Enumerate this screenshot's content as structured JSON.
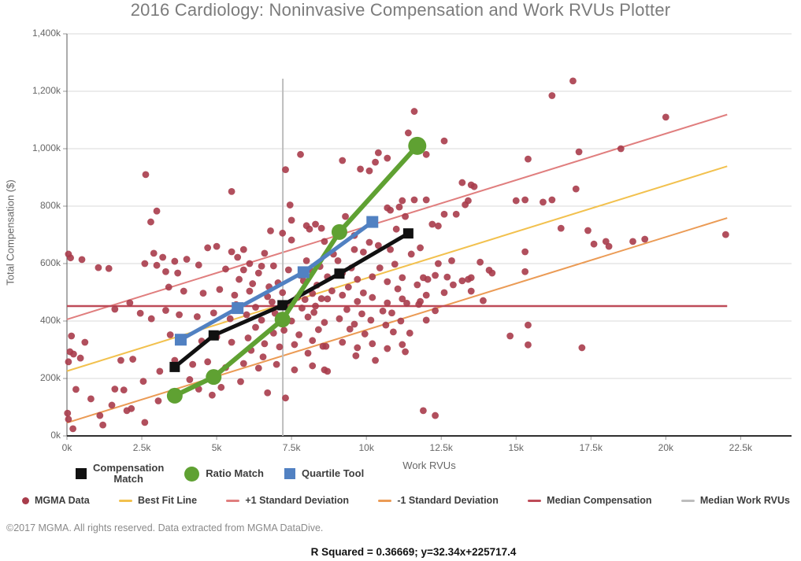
{
  "title": "2016 Cardiology: Noninvasive Compensation and Work RVUs Plotter",
  "footer": "©2017 MGMA. All rights reserved. Data extracted from MGMA DataDive.",
  "stats_line": "R Squared = 0.36669; y=32.34x+225717.4",
  "colors": {
    "scatter": "#A83C4B",
    "best_fit": "#F2C14E",
    "plus1_sd": "#E07E7E",
    "minus1_sd": "#EB9B55",
    "median_comp": "#BE4B58",
    "median_rvu": "#BDBDBD",
    "comp_match": "#111111",
    "ratio_match": "#5FA132",
    "quartile": "#5181C2",
    "grid": "#d8d8d8",
    "axis": "#3a3a3a"
  },
  "legend_row1": [
    {
      "label": "Compensation Match",
      "marker": "square",
      "color": "#111111"
    },
    {
      "label": "Ratio Match",
      "marker": "circle",
      "color": "#5FA132"
    },
    {
      "label": "Quartile Tool",
      "marker": "square",
      "color": "#5181C2"
    }
  ],
  "legend_row2": [
    {
      "label": "MGMA Data",
      "marker": "dot",
      "color": "#A83C4B"
    },
    {
      "label": "Best Fit Line",
      "marker": "dash",
      "color": "#F2C14E"
    },
    {
      "label": "+1 Standard Deviation",
      "marker": "dash",
      "color": "#E07E7E"
    },
    {
      "label": "-1 Standard Deviation",
      "marker": "dash",
      "color": "#EB9B55"
    },
    {
      "label": "Median Compensation",
      "marker": "dash",
      "color": "#BE4B58"
    },
    {
      "label": "Median Work RVUs",
      "marker": "dash",
      "color": "#BDBDBD"
    }
  ],
  "chart_data": {
    "type": "scatter",
    "title": "2016 Cardiology: Noninvasive Compensation and Work RVUs Plotter",
    "xlabel": "Work RVUs",
    "ylabel": "Total Compensation ($)",
    "x_units": "thousands of work RVUs",
    "y_units": "thousands of dollars",
    "xlim": [
      0,
      24.2
    ],
    "ylim": [
      0,
      1400
    ],
    "x_ticks": [
      {
        "v": 0,
        "t": "0k"
      },
      {
        "v": 2.5,
        "t": "2.5k"
      },
      {
        "v": 5,
        "t": "5k"
      },
      {
        "v": 7.5,
        "t": "7.5k"
      },
      {
        "v": 10,
        "t": "10k"
      },
      {
        "v": 12.5,
        "t": "12.5k"
      },
      {
        "v": 15,
        "t": "15k"
      },
      {
        "v": 17.5,
        "t": "17.5k"
      },
      {
        "v": 20,
        "t": "20k"
      },
      {
        "v": 22.5,
        "t": "22.5k"
      }
    ],
    "y_ticks": [
      {
        "v": 0,
        "t": "0k"
      },
      {
        "v": 200,
        "t": "200k"
      },
      {
        "v": 400,
        "t": "400k"
      },
      {
        "v": 600,
        "t": "600k"
      },
      {
        "v": 800,
        "t": "800k"
      },
      {
        "v": 1000,
        "t": "1,000k"
      },
      {
        "v": 1200,
        "t": "1,200k"
      },
      {
        "v": 1400,
        "t": "1,400k"
      }
    ],
    "grid": "horizontal-only",
    "r_squared": 0.36669,
    "fit_equation": "y=32.34x+225717.4",
    "ref_lines": [
      {
        "name": "Best Fit Line",
        "slope": 32.34,
        "intercept": 225.7,
        "x0": 0,
        "x1": 22.05,
        "color": "#F2C14E",
        "w": 2
      },
      {
        "name": "+1 Standard Deviation",
        "slope": 32.34,
        "intercept": 405.7,
        "x0": 0,
        "x1": 22.05,
        "color": "#E07E7E",
        "w": 2
      },
      {
        "name": "-1 Standard Deviation",
        "slope": 32.34,
        "intercept": 45.7,
        "x0": 0,
        "x1": 22.05,
        "color": "#EB9B55",
        "w": 2
      },
      {
        "name": "Median Compensation",
        "slope": 0,
        "intercept": 452,
        "x0": 0,
        "x1": 22.05,
        "color": "#BE4B58",
        "w": 2.5
      },
      {
        "name": "Median Work RVUs",
        "vertical": true,
        "x": 7.21,
        "y0": 0,
        "y1": 1244,
        "color": "#BDBDBD",
        "w": 2
      }
    ],
    "match_series": [
      {
        "name": "Compensation Match",
        "color": "#111111",
        "marker": "square",
        "marker_size": 13,
        "line_w": 5,
        "points": [
          [
            3.6,
            240
          ],
          [
            4.9,
            350
          ],
          [
            7.2,
            455
          ],
          [
            9.1,
            565
          ],
          [
            11.4,
            705
          ]
        ]
      },
      {
        "name": "Ratio Match",
        "color": "#5FA132",
        "marker": "circle",
        "marker_size": 20,
        "line_w": 6,
        "points": [
          [
            3.6,
            140
          ],
          [
            4.9,
            205
          ],
          [
            7.2,
            405
          ],
          [
            9.1,
            710
          ],
          [
            11.7,
            1010
          ]
        ]
      },
      {
        "name": "Quartile Tool",
        "color": "#5181C2",
        "marker": "square",
        "marker_size": 15,
        "line_w": 5,
        "points": [
          [
            3.8,
            335
          ],
          [
            5.7,
            445
          ],
          [
            7.9,
            570
          ],
          [
            10.2,
            745
          ]
        ]
      }
    ],
    "scatter_name": "MGMA Data",
    "points": [
      [
        0.05,
        633
      ],
      [
        0.12,
        620
      ],
      [
        0.5,
        614
      ],
      [
        1.05,
        586
      ],
      [
        1.4,
        583
      ],
      [
        2.6,
        600
      ],
      [
        0.15,
        348
      ],
      [
        0.6,
        326
      ],
      [
        0.45,
        271
      ],
      [
        0.1,
        293
      ],
      [
        0.22,
        285
      ],
      [
        0.05,
        258
      ],
      [
        0.3,
        162
      ],
      [
        0.8,
        129
      ],
      [
        1.6,
        163
      ],
      [
        1.9,
        160
      ],
      [
        2.0,
        88
      ],
      [
        2.15,
        95
      ],
      [
        2.6,
        47
      ],
      [
        2.55,
        190
      ],
      [
        0.02,
        79
      ],
      [
        0.05,
        58
      ],
      [
        0.2,
        25
      ],
      [
        1.1,
        71
      ],
      [
        1.2,
        38
      ],
      [
        1.5,
        107
      ],
      [
        1.8,
        263
      ],
      [
        2.2,
        267
      ],
      [
        2.1,
        463
      ],
      [
        1.6,
        441
      ],
      [
        2.45,
        427
      ],
      [
        2.82,
        408
      ],
      [
        2.9,
        636
      ],
      [
        3.0,
        594
      ],
      [
        3.3,
        572
      ],
      [
        3.7,
        567
      ],
      [
        2.63,
        910
      ],
      [
        2.8,
        745
      ],
      [
        3.0,
        783
      ],
      [
        3.2,
        622
      ],
      [
        3.6,
        608
      ],
      [
        4.0,
        615
      ],
      [
        4.4,
        595
      ],
      [
        3.4,
        518
      ],
      [
        3.9,
        504
      ],
      [
        4.55,
        497
      ],
      [
        3.45,
        352
      ],
      [
        3.85,
        341
      ],
      [
        4.5,
        330
      ],
      [
        3.3,
        437
      ],
      [
        3.75,
        422
      ],
      [
        4.35,
        415
      ],
      [
        4.9,
        428
      ],
      [
        3.6,
        263
      ],
      [
        4.2,
        249
      ],
      [
        4.7,
        258
      ],
      [
        4.1,
        196
      ],
      [
        3.1,
        225
      ],
      [
        4.4,
        163
      ],
      [
        4.85,
        142
      ],
      [
        3.05,
        122
      ],
      [
        5.0,
        660
      ],
      [
        4.7,
        655
      ],
      [
        5.3,
        581
      ],
      [
        5.1,
        510
      ],
      [
        5.0,
        345
      ],
      [
        5.3,
        238
      ],
      [
        5.15,
        169
      ],
      [
        5.5,
        851
      ],
      [
        5.5,
        641
      ],
      [
        5.7,
        622
      ],
      [
        6.1,
        600
      ],
      [
        6.5,
        591
      ],
      [
        5.9,
        649
      ],
      [
        6.6,
        636
      ],
      [
        5.9,
        578
      ],
      [
        6.4,
        567
      ],
      [
        6.9,
        592
      ],
      [
        5.6,
        490
      ],
      [
        6.1,
        504
      ],
      [
        6.7,
        485
      ],
      [
        5.45,
        408
      ],
      [
        6.0,
        422
      ],
      [
        6.5,
        403
      ],
      [
        5.5,
        326
      ],
      [
        6.05,
        341
      ],
      [
        6.6,
        321
      ],
      [
        5.9,
        252
      ],
      [
        6.4,
        236
      ],
      [
        7.0,
        249
      ],
      [
        6.3,
        448
      ],
      [
        6.85,
        466
      ],
      [
        6.75,
        519
      ],
      [
        5.75,
        545
      ],
      [
        6.2,
        530
      ],
      [
        7.05,
        533
      ],
      [
        6.95,
        427
      ],
      [
        5.65,
        457
      ],
      [
        6.3,
        378
      ],
      [
        6.9,
        358
      ],
      [
        6.15,
        298
      ],
      [
        6.55,
        275
      ],
      [
        5.8,
        189
      ],
      [
        6.7,
        150
      ],
      [
        7.3,
        132
      ],
      [
        7.1,
        310
      ],
      [
        7.3,
        927
      ],
      [
        7.8,
        980
      ],
      [
        7.45,
        804
      ],
      [
        7.5,
        751
      ],
      [
        6.8,
        714
      ],
      [
        7.2,
        706
      ],
      [
        8.1,
        720
      ],
      [
        7.5,
        682
      ],
      [
        8.0,
        732
      ],
      [
        8.3,
        737
      ],
      [
        7.4,
        578
      ],
      [
        7.8,
        559
      ],
      [
        8.2,
        573
      ],
      [
        7.2,
        499
      ],
      [
        7.7,
        482
      ],
      [
        8.2,
        496
      ],
      [
        7.5,
        400
      ],
      [
        8.05,
        414
      ],
      [
        7.6,
        318
      ],
      [
        8.2,
        332
      ],
      [
        7.6,
        230
      ],
      [
        8.2,
        244
      ],
      [
        8.5,
        723
      ],
      [
        8.6,
        677
      ],
      [
        8.45,
        590
      ],
      [
        8.0,
        610
      ],
      [
        7.9,
        540
      ],
      [
        8.35,
        525
      ],
      [
        7.35,
        460
      ],
      [
        7.85,
        445
      ],
      [
        8.3,
        452
      ],
      [
        8.5,
        478
      ],
      [
        7.25,
        368
      ],
      [
        7.75,
        352
      ],
      [
        8.4,
        370
      ],
      [
        8.05,
        288
      ],
      [
        8.6,
        230
      ],
      [
        8.55,
        312
      ],
      [
        7.95,
        475
      ],
      [
        8.25,
        430
      ],
      [
        9.3,
        764
      ],
      [
        9.6,
        698
      ],
      [
        8.9,
        633
      ],
      [
        9.6,
        649
      ],
      [
        8.7,
        554
      ],
      [
        9.2,
        567
      ],
      [
        9.7,
        545
      ],
      [
        8.7,
        477
      ],
      [
        9.2,
        490
      ],
      [
        9.7,
        468
      ],
      [
        8.6,
        395
      ],
      [
        9.1,
        408
      ],
      [
        9.6,
        389
      ],
      [
        8.65,
        312
      ],
      [
        9.2,
        326
      ],
      [
        9.7,
        307
      ],
      [
        8.7,
        225
      ],
      [
        9.65,
        279
      ],
      [
        9.2,
        959
      ],
      [
        9.8,
        929
      ],
      [
        8.85,
        505
      ],
      [
        9.4,
        518
      ],
      [
        9.9,
        498
      ],
      [
        9.35,
        440
      ],
      [
        9.85,
        425
      ],
      [
        9.45,
        372
      ],
      [
        9.95,
        355
      ],
      [
        9.5,
        585
      ],
      [
        9.05,
        610
      ],
      [
        9.9,
        640
      ],
      [
        10.4,
        986
      ],
      [
        10.7,
        967
      ],
      [
        10.3,
        953
      ],
      [
        10.1,
        923
      ],
      [
        10.8,
        786
      ],
      [
        11.3,
        764
      ],
      [
        10.1,
        674
      ],
      [
        10.4,
        663
      ],
      [
        10.8,
        649
      ],
      [
        10.2,
        554
      ],
      [
        10.7,
        537
      ],
      [
        11.2,
        551
      ],
      [
        10.2,
        482
      ],
      [
        10.7,
        463
      ],
      [
        11.2,
        477
      ],
      [
        10.15,
        403
      ],
      [
        10.65,
        386
      ],
      [
        11.15,
        400
      ],
      [
        10.2,
        321
      ],
      [
        10.7,
        304
      ],
      [
        11.2,
        318
      ],
      [
        10.3,
        263
      ],
      [
        11.3,
        293
      ],
      [
        10.45,
        585
      ],
      [
        10.95,
        598
      ],
      [
        11.05,
        512
      ],
      [
        10.55,
        435
      ],
      [
        11.35,
        462
      ],
      [
        10.85,
        428
      ],
      [
        11.45,
        358
      ],
      [
        10.9,
        362
      ],
      [
        11.0,
        720
      ],
      [
        10.7,
        794
      ],
      [
        11.1,
        797
      ],
      [
        11.6,
        1130
      ],
      [
        11.4,
        1055
      ],
      [
        12.6,
        1027
      ],
      [
        12.0,
        980
      ],
      [
        11.2,
        819
      ],
      [
        11.6,
        822
      ],
      [
        12.0,
        822
      ],
      [
        12.2,
        737
      ],
      [
        12.4,
        731
      ],
      [
        12.6,
        772
      ],
      [
        13.0,
        772
      ],
      [
        11.8,
        655
      ],
      [
        11.5,
        633
      ],
      [
        11.7,
        526
      ],
      [
        11.9,
        551
      ],
      [
        12.05,
        545
      ],
      [
        12.3,
        559
      ],
      [
        12.7,
        553
      ],
      [
        12.9,
        526
      ],
      [
        12.4,
        600
      ],
      [
        12.6,
        499
      ],
      [
        12.0,
        490
      ],
      [
        11.8,
        468
      ],
      [
        12.3,
        436
      ],
      [
        12.0,
        403
      ],
      [
        11.9,
        88
      ],
      [
        12.3,
        71
      ],
      [
        11.75,
        458
      ],
      [
        12.85,
        610
      ],
      [
        13.2,
        882
      ],
      [
        13.5,
        874
      ],
      [
        13.6,
        868
      ],
      [
        13.4,
        819
      ],
      [
        13.3,
        805
      ],
      [
        13.8,
        605
      ],
      [
        13.2,
        540
      ],
      [
        13.4,
        545
      ],
      [
        13.5,
        551
      ],
      [
        13.5,
        504
      ],
      [
        13.9,
        471
      ],
      [
        14.2,
        567
      ],
      [
        14.1,
        577
      ],
      [
        14.8,
        348
      ],
      [
        15.4,
        386
      ],
      [
        15.4,
        317
      ],
      [
        15.0,
        819
      ],
      [
        15.3,
        822
      ],
      [
        15.9,
        814
      ],
      [
        16.2,
        822
      ],
      [
        15.3,
        641
      ],
      [
        15.3,
        572
      ],
      [
        15.4,
        964
      ],
      [
        16.2,
        1185
      ],
      [
        16.9,
        1236
      ],
      [
        17.1,
        989
      ],
      [
        18.5,
        1000
      ],
      [
        17.0,
        860
      ],
      [
        16.5,
        723
      ],
      [
        17.4,
        715
      ],
      [
        17.6,
        668
      ],
      [
        18.0,
        677
      ],
      [
        18.1,
        660
      ],
      [
        18.9,
        677
      ],
      [
        19.3,
        685
      ],
      [
        20.0,
        1110
      ],
      [
        22.0,
        701
      ],
      [
        17.2,
        307
      ]
    ]
  }
}
